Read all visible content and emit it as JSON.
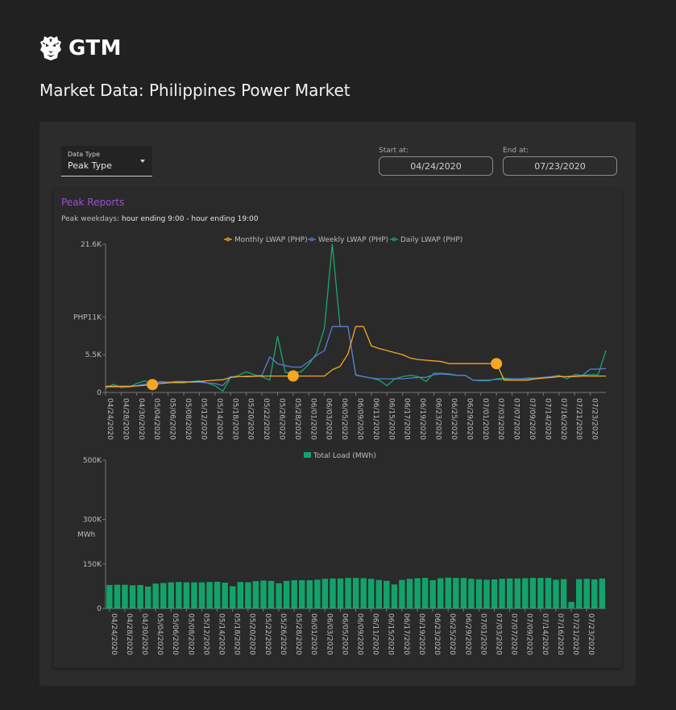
{
  "brand": {
    "name": "GTM",
    "logo_icon": "tiger-head-icon"
  },
  "page_title": "Market Data: Philippines Power Market",
  "controls": {
    "data_type_label": "Data Type",
    "data_type_value": "Peak Type",
    "start_label": "Start at:",
    "start_value": "04/24/2020",
    "end_label": "End at:",
    "end_value": "07/23/2020"
  },
  "report": {
    "title": "Peak Reports",
    "subtitle_prefix": "Peak weekdays: ",
    "subtitle_value": "hour ending 9:00 - hour ending 19:00"
  },
  "colors": {
    "monthly": "#f5a623",
    "weekly": "#5b7bd5",
    "daily": "#17a86b",
    "bars": "#12a36b",
    "title": "#9b4fd1"
  },
  "chart_data": [
    {
      "type": "line",
      "legend_position": "top",
      "y_tick_labels": [
        "0",
        "5.5K",
        "PHP11K",
        "21.6K"
      ],
      "y_tick_values": [
        0,
        5500,
        11000,
        21600
      ],
      "ylim": [
        0,
        21600
      ],
      "x_tick_labels": [
        "04/24/2020",
        "04/28/2020",
        "04/30/2020",
        "05/04/2020",
        "05/06/2020",
        "05/08/2020",
        "05/12/2020",
        "05/14/2020",
        "05/18/2020",
        "05/20/2020",
        "05/22/2020",
        "05/26/2020",
        "05/28/2020",
        "06/01/2020",
        "06/03/2020",
        "06/05/2020",
        "06/09/2020",
        "06/11/2020",
        "06/15/2020",
        "06/17/2020",
        "06/19/2020",
        "06/23/2020",
        "06/25/2020",
        "06/29/2020",
        "07/01/2020",
        "07/03/2020",
        "07/07/2020",
        "07/09/2020",
        "07/14/2020",
        "07/16/2020",
        "07/21/2020",
        "07/23/2020"
      ],
      "x_tick_index": [
        0,
        2,
        4,
        6,
        8,
        10,
        12,
        14,
        16,
        18,
        20,
        22,
        24,
        26,
        28,
        30,
        32,
        34,
        36,
        38,
        40,
        42,
        44,
        46,
        48,
        50,
        52,
        54,
        56,
        58,
        60,
        62
      ],
      "series": [
        {
          "name": "Monthly LWAP (PHP)",
          "values": [
            900,
            900,
            900,
            900,
            950,
            1050,
            1150,
            1300,
            1400,
            1500,
            1500,
            1550,
            1600,
            1700,
            1800,
            1850,
            2200,
            2300,
            2300,
            2350,
            2400,
            2400,
            2400,
            2400,
            2400,
            2400,
            2400,
            2400,
            2400,
            3300,
            3800,
            5600,
            9600,
            9600,
            6800,
            6400,
            6100,
            5800,
            5500,
            5000,
            4800,
            4700,
            4600,
            4500,
            4200,
            4200,
            4200,
            4200,
            4200,
            4200,
            4200,
            1800,
            1800,
            1800,
            1800,
            2000,
            2100,
            2200,
            2300,
            2300,
            2300,
            2400,
            2400,
            2400,
            2400
          ]
        },
        {
          "name": "Weekly LWAP (PHP)",
          "values": [
            800,
            800,
            800,
            800,
            1000,
            1200,
            1400,
            1500,
            1500,
            1600,
            1600,
            1500,
            1500,
            1400,
            1300,
            1000,
            2300,
            2300,
            2400,
            2400,
            2500,
            5200,
            4200,
            3900,
            3700,
            3700,
            4500,
            5400,
            6100,
            9600,
            9600,
            9600,
            2600,
            2300,
            2100,
            2000,
            2000,
            2000,
            2000,
            2100,
            2200,
            2200,
            2600,
            2700,
            2600,
            2500,
            2500,
            1800,
            1800,
            1800,
            1900,
            1900,
            2000,
            2000,
            2100,
            2100,
            2200,
            2300,
            2400,
            2300,
            2500,
            2500,
            3400,
            3400,
            3500
          ]
        },
        {
          "name": "Daily LWAP (PHP)",
          "values": [
            600,
            1200,
            700,
            800,
            1300,
            1700,
            1200,
            1600,
            1500,
            1400,
            1400,
            1600,
            1700,
            1400,
            1000,
            200,
            2200,
            2500,
            3000,
            2600,
            2300,
            1800,
            8200,
            2900,
            2900,
            3000,
            4100,
            5700,
            9400,
            21600,
            9600,
            9600,
            2500,
            2300,
            2100,
            1800,
            1000,
            2000,
            2300,
            2500,
            2300,
            1600,
            2800,
            2800,
            2700,
            2500,
            2500,
            1800,
            1700,
            1700,
            2000,
            2100,
            2000,
            2000,
            2000,
            2000,
            2100,
            2300,
            2500,
            2000,
            2600,
            2500,
            2600,
            2600,
            6100
          ]
        }
      ]
    },
    {
      "type": "bar",
      "legend_position": "top",
      "ylabel": "MWh",
      "y_tick_labels": [
        "0",
        "150K",
        "300K",
        "500K"
      ],
      "y_tick_values": [
        0,
        150000,
        300000,
        500000
      ],
      "ylim": [
        0,
        500000
      ],
      "x_tick_labels": [
        "04/24/2020",
        "04/28/2020",
        "04/30/2020",
        "05/04/2020",
        "05/06/2020",
        "05/08/2020",
        "05/12/2020",
        "05/14/2020",
        "05/18/2020",
        "05/20/2020",
        "05/22/2020",
        "05/26/2020",
        "05/28/2020",
        "06/01/2020",
        "06/03/2020",
        "06/05/2020",
        "06/09/2020",
        "06/11/2020",
        "06/15/2020",
        "06/17/2020",
        "06/19/2020",
        "06/23/2020",
        "06/25/2020",
        "06/29/2020",
        "07/01/2020",
        "07/03/2020",
        "07/07/2020",
        "07/09/2020",
        "07/14/2020",
        "07/16/2020",
        "07/21/2020",
        "07/23/2020"
      ],
      "x_tick_index": [
        0,
        2,
        4,
        6,
        8,
        10,
        12,
        14,
        16,
        18,
        20,
        22,
        24,
        26,
        28,
        30,
        32,
        34,
        36,
        38,
        40,
        42,
        44,
        46,
        48,
        50,
        52,
        54,
        56,
        58,
        60,
        62
      ],
      "series": [
        {
          "name": "Total Load (MWh)",
          "values": [
            79000,
            80000,
            80000,
            78000,
            79000,
            74000,
            84000,
            86000,
            88000,
            89000,
            88000,
            88000,
            88000,
            89000,
            90000,
            87000,
            75000,
            89000,
            88000,
            92000,
            94000,
            93000,
            85000,
            93000,
            95000,
            95000,
            95000,
            97000,
            100000,
            101000,
            101000,
            103000,
            103000,
            102000,
            100000,
            96000,
            93000,
            81000,
            96000,
            100000,
            102000,
            103000,
            95000,
            102000,
            104000,
            103000,
            103000,
            100000,
            98000,
            97000,
            98000,
            100000,
            101000,
            101000,
            102000,
            103000,
            103000,
            103000,
            97000,
            99000,
            22000,
            99000,
            100000,
            98000,
            101000
          ]
        }
      ]
    }
  ]
}
